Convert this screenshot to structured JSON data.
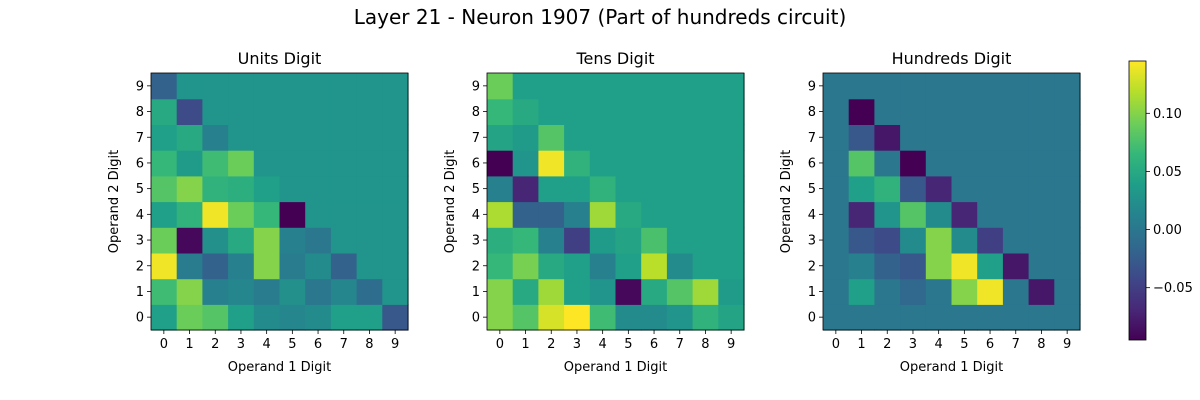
{
  "figure": {
    "title": "Layer 21 - Neuron 1907 (Part of hundreds circuit)"
  },
  "colormap": {
    "name": "viridis",
    "stops": [
      "#440154",
      "#482878",
      "#3e4989",
      "#31688e",
      "#26828e",
      "#1f9e89",
      "#35b779",
      "#6ece58",
      "#b5de2b",
      "#fde725"
    ]
  },
  "chart_data": [
    {
      "type": "heatmap",
      "title": "Units Digit",
      "xlabel": "Operand 1 Digit",
      "ylabel": "Operand 2 Digit",
      "x_ticks": [
        "0",
        "1",
        "2",
        "3",
        "4",
        "5",
        "6",
        "7",
        "8",
        "9"
      ],
      "y_ticks": [
        "0",
        "1",
        "2",
        "3",
        "4",
        "5",
        "6",
        "7",
        "8",
        "9"
      ],
      "cells": [
        [
          0.04,
          0.09,
          0.08,
          0.04,
          0.02,
          0.015,
          0.02,
          0.04,
          0.04,
          -0.03
        ],
        [
          0.07,
          0.1,
          0.01,
          0.015,
          0.005,
          0.025,
          0.0,
          0.015,
          -0.01,
          0.03
        ],
        [
          0.14,
          0.005,
          -0.02,
          0.01,
          0.1,
          0.005,
          0.02,
          -0.02,
          0.03,
          0.03
        ],
        [
          0.09,
          -0.09,
          0.025,
          0.05,
          0.1,
          0.01,
          0.0,
          0.03,
          0.03,
          0.03
        ],
        [
          0.04,
          0.06,
          0.14,
          0.09,
          0.065,
          -0.095,
          0.03,
          0.03,
          0.03,
          0.03
        ],
        [
          0.08,
          0.1,
          0.06,
          0.055,
          0.04,
          0.03,
          0.03,
          0.03,
          0.03,
          0.03
        ],
        [
          0.065,
          0.035,
          0.07,
          0.09,
          0.03,
          0.03,
          0.03,
          0.03,
          0.03,
          0.03
        ],
        [
          0.04,
          0.05,
          0.01,
          0.03,
          0.03,
          0.03,
          0.03,
          0.03,
          0.03,
          0.03
        ],
        [
          0.05,
          -0.04,
          0.03,
          0.03,
          0.03,
          0.03,
          0.03,
          0.03,
          0.03,
          0.03
        ],
        [
          -0.02,
          0.03,
          0.03,
          0.03,
          0.03,
          0.03,
          0.03,
          0.03,
          0.03,
          0.03
        ]
      ]
    },
    {
      "type": "heatmap",
      "title": "Tens Digit",
      "xlabel": "Operand 1 Digit",
      "ylabel": "Operand 2 Digit",
      "x_ticks": [
        "0",
        "1",
        "2",
        "3",
        "4",
        "5",
        "6",
        "7",
        "8",
        "9"
      ],
      "y_ticks": [
        "0",
        "1",
        "2",
        "3",
        "4",
        "5",
        "6",
        "7",
        "8",
        "9"
      ],
      "cells": [
        [
          0.1,
          0.08,
          0.13,
          0.145,
          0.07,
          0.02,
          0.02,
          0.03,
          0.06,
          0.045
        ],
        [
          0.1,
          0.05,
          0.11,
          0.04,
          0.03,
          -0.09,
          0.05,
          0.08,
          0.11,
          0.035
        ],
        [
          0.065,
          0.095,
          0.05,
          0.04,
          0.01,
          0.04,
          0.12,
          0.02,
          0.04,
          0.04
        ],
        [
          0.055,
          0.065,
          0.01,
          -0.05,
          0.035,
          0.045,
          0.075,
          0.04,
          0.04,
          0.04
        ],
        [
          0.115,
          -0.02,
          -0.02,
          0.01,
          0.11,
          0.05,
          0.04,
          0.04,
          0.04,
          0.04
        ],
        [
          0.01,
          -0.07,
          0.04,
          0.04,
          0.06,
          0.04,
          0.04,
          0.04,
          0.04,
          0.04
        ],
        [
          -0.095,
          0.03,
          0.14,
          0.06,
          0.04,
          0.04,
          0.04,
          0.04,
          0.04,
          0.04
        ],
        [
          0.045,
          0.035,
          0.08,
          0.04,
          0.04,
          0.04,
          0.04,
          0.04,
          0.04,
          0.04
        ],
        [
          0.065,
          0.05,
          0.04,
          0.04,
          0.04,
          0.04,
          0.04,
          0.04,
          0.04,
          0.04
        ],
        [
          0.09,
          0.04,
          0.04,
          0.04,
          0.04,
          0.04,
          0.04,
          0.04,
          0.04,
          0.04
        ]
      ]
    },
    {
      "type": "heatmap",
      "title": "Hundreds Digit",
      "xlabel": "Operand 1 Digit",
      "ylabel": "Operand 2 Digit",
      "x_ticks": [
        "0",
        "1",
        "2",
        "3",
        "4",
        "5",
        "6",
        "7",
        "8",
        "9"
      ],
      "y_ticks": [
        "0",
        "1",
        "2",
        "3",
        "4",
        "5",
        "6",
        "7",
        "8",
        "9"
      ],
      "cells": [
        [
          0.0,
          0.0,
          0.0,
          0.0,
          0.0,
          0.0,
          0.0,
          0.0,
          0.0,
          0.0
        ],
        [
          0.0,
          0.04,
          0.0,
          -0.015,
          0.0,
          0.1,
          0.14,
          0.0,
          -0.08,
          0.0
        ],
        [
          0.0,
          0.01,
          -0.02,
          -0.03,
          0.1,
          0.14,
          0.04,
          -0.08,
          0.0,
          0.0
        ],
        [
          0.0,
          -0.03,
          -0.04,
          0.02,
          0.1,
          0.02,
          -0.05,
          0.0,
          0.0,
          0.0
        ],
        [
          0.0,
          -0.07,
          0.03,
          0.08,
          0.02,
          -0.07,
          0.0,
          0.0,
          0.0,
          0.0
        ],
        [
          0.0,
          0.04,
          0.06,
          -0.03,
          -0.07,
          0.0,
          0.0,
          0.0,
          0.0,
          0.0
        ],
        [
          0.0,
          0.08,
          0.0,
          -0.095,
          0.0,
          0.0,
          0.0,
          0.0,
          0.0,
          0.0
        ],
        [
          0.0,
          -0.03,
          -0.08,
          0.0,
          0.0,
          0.0,
          0.0,
          0.0,
          0.0,
          0.0
        ],
        [
          0.0,
          -0.095,
          0.0,
          0.0,
          0.0,
          0.0,
          0.0,
          0.0,
          0.0,
          0.0
        ],
        [
          0.0,
          0.0,
          0.0,
          0.0,
          0.0,
          0.0,
          0.0,
          0.0,
          0.0,
          0.0
        ]
      ]
    }
  ],
  "colorbar": {
    "min": -0.095,
    "max": 0.145,
    "ticks": [
      -0.05,
      0.0,
      0.05,
      0.1
    ],
    "tick_labels": [
      "−0.05",
      "0.00",
      "0.05",
      "0.10"
    ]
  }
}
